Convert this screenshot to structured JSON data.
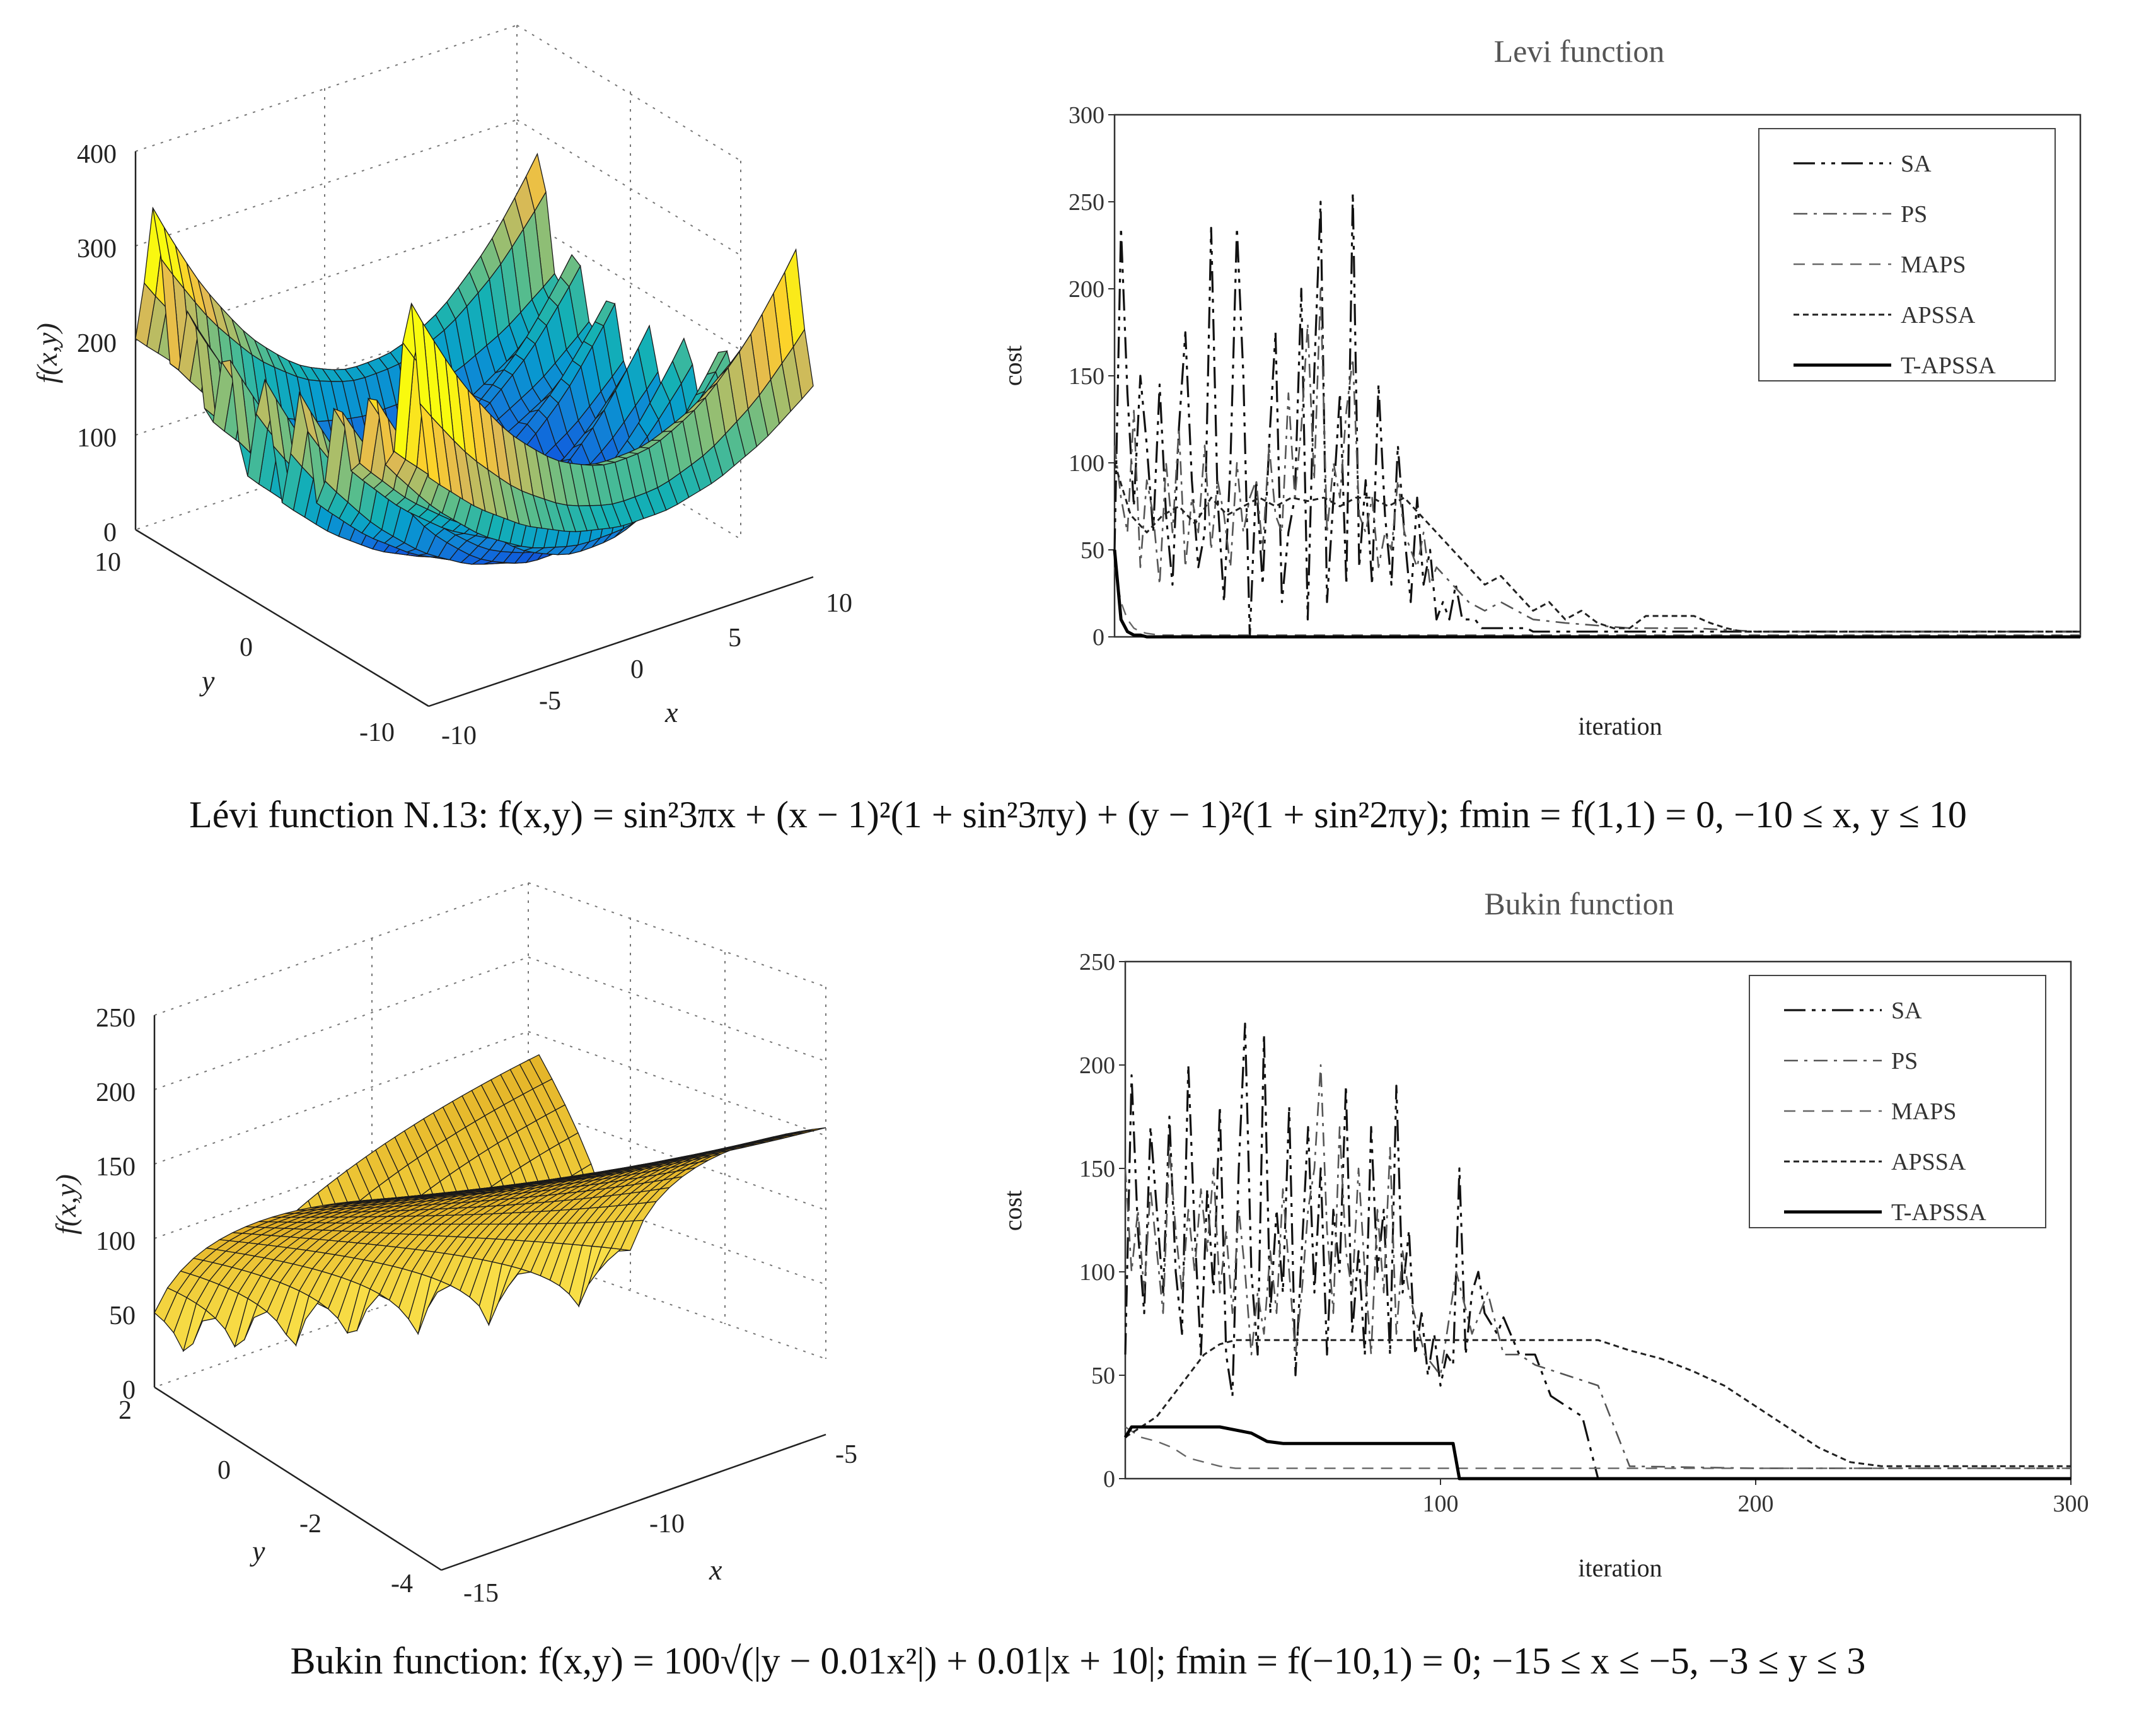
{
  "panels": [
    {
      "surface": {
        "zlabel": "f(x,y)",
        "xlabel": "x",
        "ylabel": "y",
        "z_ticks": [
          "0",
          "100",
          "200",
          "300",
          "400"
        ],
        "x_ticks": [
          "-10",
          "-5",
          "0",
          "5",
          "10"
        ],
        "y_ticks": [
          "10",
          "0",
          "-10"
        ]
      },
      "chart_data": {
        "type": "line",
        "title": "Levi function",
        "xlabel": "iteration",
        "ylabel": "cost",
        "xlim": [
          0,
          300
        ],
        "ylim": [
          0,
          300
        ],
        "y_ticks": [
          "0",
          "50",
          "100",
          "150",
          "200",
          "250",
          "300"
        ],
        "x_ticks": [],
        "legend_position": "top-right",
        "series": [
          {
            "name": "SA",
            "x": [
              0,
              2,
              4,
              6,
              8,
              10,
              12,
              14,
              16,
              18,
              20,
              22,
              24,
              26,
              28,
              30,
              32,
              34,
              36,
              38,
              40,
              42,
              44,
              46,
              48,
              50,
              52,
              54,
              56,
              58,
              60,
              62,
              64,
              66,
              68,
              70,
              72,
              74,
              76,
              78,
              80,
              82,
              84,
              86,
              88,
              90,
              92,
              94,
              96,
              98,
              100,
              102,
              104,
              106,
              108,
              110,
              112,
              114,
              116,
              118,
              120,
              122,
              124,
              126,
              128,
              130,
              135,
              140,
              150,
              160,
              170,
              180,
              200,
              220,
              240,
              260,
              280,
              300
            ],
            "y": [
              50,
              235,
              140,
              75,
              150,
              110,
              60,
              145,
              70,
              30,
              120,
              175,
              90,
              40,
              60,
              235,
              80,
              20,
              100,
              235,
              150,
              0,
              90,
              30,
              110,
              175,
              20,
              60,
              80,
              200,
              10,
              150,
              250,
              20,
              80,
              140,
              30,
              255,
              40,
              90,
              30,
              145,
              70,
              30,
              110,
              60,
              20,
              80,
              30,
              50,
              10,
              20,
              10,
              30,
              10,
              10,
              10,
              5,
              5,
              5,
              5,
              5,
              5,
              5,
              5,
              3,
              3,
              3,
              3,
              3,
              3,
              3,
              3,
              3,
              3,
              3,
              3,
              3
            ]
          },
          {
            "name": "PS",
            "x": [
              0,
              2,
              4,
              6,
              8,
              10,
              12,
              14,
              16,
              18,
              20,
              22,
              24,
              26,
              28,
              30,
              32,
              34,
              36,
              38,
              40,
              42,
              44,
              46,
              48,
              50,
              52,
              54,
              56,
              58,
              60,
              62,
              64,
              66,
              68,
              70,
              72,
              74,
              76,
              78,
              80,
              82,
              84,
              86,
              88,
              90,
              92,
              94,
              96,
              98,
              100,
              105,
              110,
              115,
              120,
              125,
              130,
              140,
              160,
              180,
              200,
              240,
              300
            ],
            "y": [
              110,
              80,
              60,
              130,
              40,
              90,
              70,
              30,
              100,
              60,
              120,
              40,
              80,
              60,
              110,
              50,
              90,
              70,
              40,
              100,
              60,
              80,
              90,
              50,
              110,
              70,
              60,
              140,
              80,
              120,
              180,
              90,
              200,
              60,
              100,
              80,
              130,
              160,
              70,
              60,
              80,
              40,
              60,
              50,
              90,
              60,
              50,
              40,
              60,
              30,
              40,
              30,
              20,
              15,
              20,
              15,
              10,
              8,
              5,
              5,
              3,
              3,
              3
            ]
          },
          {
            "name": "MAPS",
            "x": [
              0,
              2,
              4,
              6,
              8,
              10,
              14,
              20,
              30,
              50,
              80,
              120,
              160,
              200,
              250,
              300
            ],
            "y": [
              40,
              20,
              10,
              5,
              3,
              2,
              1,
              1,
              1,
              1,
              1,
              1,
              1,
              1,
              1,
              1
            ]
          },
          {
            "name": "APSSA",
            "x": [
              0,
              5,
              10,
              15,
              20,
              25,
              30,
              35,
              40,
              45,
              50,
              55,
              60,
              65,
              70,
              75,
              80,
              85,
              90,
              95,
              100,
              105,
              110,
              115,
              120,
              125,
              130,
              135,
              140,
              145,
              150,
              155,
              160,
              165,
              170,
              175,
              180,
              185,
              190,
              195,
              200,
              210,
              220,
              240,
              260,
              300
            ],
            "y": [
              100,
              70,
              60,
              70,
              75,
              65,
              80,
              70,
              75,
              80,
              75,
              80,
              78,
              80,
              75,
              80,
              80,
              75,
              80,
              70,
              60,
              50,
              40,
              30,
              35,
              25,
              15,
              20,
              10,
              15,
              8,
              5,
              5,
              12,
              12,
              12,
              12,
              8,
              5,
              3,
              3,
              3,
              3,
              3,
              3,
              3
            ]
          },
          {
            "name": "T-APSSA",
            "x": [
              0,
              2,
              4,
              6,
              8,
              10,
              300
            ],
            "y": [
              50,
              10,
              3,
              1,
              1,
              0,
              0
            ]
          }
        ]
      }
    },
    {
      "surface": {
        "zlabel": "f(x,y)",
        "xlabel": "x",
        "ylabel": "y",
        "z_ticks": [
          "0",
          "50",
          "100",
          "150",
          "200",
          "250"
        ],
        "x_ticks": [
          "-15",
          "-10",
          "-5"
        ],
        "y_ticks": [
          "2",
          "0",
          "-2",
          "-4"
        ]
      },
      "chart_data": {
        "type": "line",
        "title": "Bukin function",
        "xlabel": "iteration",
        "ylabel": "cost",
        "xlim": [
          0,
          300
        ],
        "ylim": [
          0,
          250
        ],
        "y_ticks": [
          "0",
          "50",
          "100",
          "150",
          "200",
          "250"
        ],
        "x_ticks": [
          "100",
          "200",
          "300"
        ],
        "x_tick_values": [
          100,
          200,
          300
        ],
        "legend_position": "top-right",
        "series": [
          {
            "name": "SA",
            "x": [
              0,
              2,
              4,
              6,
              8,
              10,
              12,
              14,
              16,
              18,
              20,
              22,
              24,
              26,
              28,
              30,
              32,
              34,
              36,
              38,
              40,
              42,
              44,
              46,
              48,
              50,
              52,
              54,
              56,
              58,
              60,
              62,
              64,
              66,
              68,
              70,
              72,
              74,
              76,
              78,
              80,
              82,
              84,
              86,
              88,
              90,
              92,
              94,
              96,
              98,
              100,
              102,
              104,
              106,
              108,
              110,
              112,
              114,
              116,
              118,
              120,
              125,
              130,
              135,
              140,
              145,
              150,
              151,
              160,
              200,
              300
            ],
            "y": [
              60,
              195,
              120,
              80,
              170,
              130,
              90,
              175,
              100,
              70,
              200,
              120,
              60,
              140,
              90,
              180,
              60,
              40,
              150,
              220,
              100,
              60,
              215,
              80,
              130,
              90,
              180,
              50,
              110,
              170,
              90,
              150,
              60,
              130,
              100,
              190,
              70,
              110,
              60,
              170,
              100,
              130,
              60,
              190,
              90,
              120,
              60,
              80,
              50,
              70,
              45,
              60,
              55,
              150,
              60,
              90,
              100,
              80,
              75,
              70,
              78,
              60,
              60,
              40,
              35,
              30,
              0,
              0,
              0,
              0,
              0
            ]
          },
          {
            "name": "PS",
            "x": [
              0,
              2,
              4,
              6,
              8,
              10,
              12,
              14,
              16,
              18,
              20,
              22,
              24,
              26,
              28,
              30,
              32,
              34,
              36,
              38,
              40,
              42,
              44,
              46,
              48,
              50,
              52,
              54,
              56,
              58,
              60,
              62,
              64,
              66,
              68,
              70,
              72,
              74,
              76,
              78,
              80,
              82,
              84,
              86,
              88,
              90,
              95,
              100,
              105,
              110,
              115,
              120,
              125,
              130,
              140,
              150,
              160,
              200,
              300
            ],
            "y": [
              150,
              100,
              130,
              90,
              140,
              110,
              80,
              160,
              120,
              90,
              130,
              100,
              140,
              110,
              150,
              90,
              120,
              80,
              130,
              100,
              60,
              90,
              70,
              110,
              80,
              140,
              100,
              60,
              90,
              130,
              150,
              200,
              120,
              80,
              170,
              110,
              90,
              150,
              100,
              60,
              130,
              90,
              160,
              70,
              110,
              90,
              60,
              50,
              100,
              70,
              90,
              60,
              60,
              55,
              50,
              45,
              6,
              5,
              5
            ]
          },
          {
            "name": "MAPS",
            "x": [
              0,
              5,
              10,
              15,
              20,
              25,
              30,
              35,
              40,
              50,
              100,
              150,
              200,
              300
            ],
            "y": [
              25,
              20,
              18,
              15,
              10,
              8,
              6,
              5,
              5,
              5,
              5,
              5,
              5,
              5
            ]
          },
          {
            "name": "APSSA",
            "x": [
              0,
              5,
              10,
              15,
              20,
              25,
              30,
              35,
              40,
              45,
              50,
              60,
              70,
              80,
              90,
              100,
              110,
              120,
              130,
              140,
              150,
              160,
              170,
              180,
              190,
              200,
              210,
              220,
              230,
              240,
              250,
              300
            ],
            "y": [
              20,
              25,
              30,
              40,
              50,
              60,
              65,
              67,
              67,
              67,
              67,
              67,
              67,
              67,
              67,
              67,
              67,
              67,
              67,
              67,
              67,
              62,
              58,
              52,
              45,
              35,
              25,
              15,
              8,
              6,
              6,
              6
            ]
          },
          {
            "name": "T-APSSA",
            "x": [
              0,
              2,
              5,
              10,
              20,
              30,
              40,
              45,
              50,
              60,
              80,
              100,
              104,
              106,
              108,
              150,
              200,
              300
            ],
            "y": [
              20,
              25,
              25,
              25,
              25,
              25,
              22,
              18,
              17,
              17,
              17,
              17,
              17,
              0,
              0,
              0,
              0,
              0
            ]
          }
        ]
      }
    }
  ],
  "captions": [
    "Lévi function N.13: f(x,y) = sin²3πx + (x − 1)²(1 + sin²3πy) + (y − 1)²(1 + sin²2πy); fmin = f(1,1) = 0, −10 ≤ x, y ≤ 10",
    "Bukin function: f(x,y) = 100√(|y − 0.01x²|) + 0.01|x + 10|; fmin = f(−10,1) = 0; −15 ≤ x ≤ −5, −3 ≤ y ≤ 3"
  ]
}
